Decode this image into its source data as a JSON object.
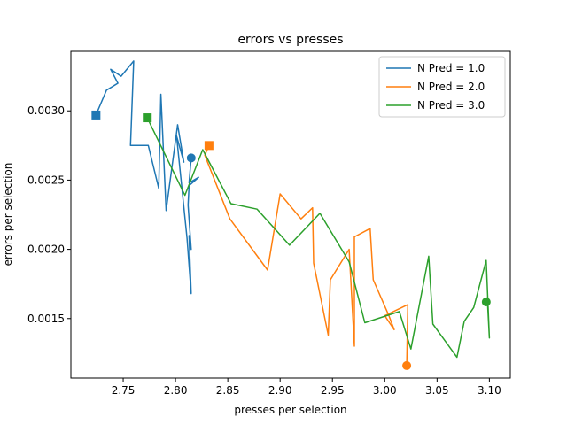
{
  "chart_data": {
    "type": "line",
    "title": "errors vs presses",
    "xlabel": "presses per selection",
    "ylabel": "errors per selection",
    "xlim": [
      2.7,
      3.12
    ],
    "ylim": [
      0.00107,
      0.00343
    ],
    "xticks": [
      2.75,
      2.8,
      2.85,
      2.9,
      2.95,
      3.0,
      3.05,
      3.1
    ],
    "xtick_labels": [
      "2.75",
      "2.80",
      "2.85",
      "2.90",
      "2.95",
      "3.00",
      "3.05",
      "3.10"
    ],
    "yticks": [
      0.0015,
      0.002,
      0.0025,
      0.003
    ],
    "ytick_labels": [
      "0.0015",
      "0.0020",
      "0.0025",
      "0.0030"
    ],
    "grid": false,
    "legend": "top-right",
    "start_marker": "square",
    "end_marker": "circle",
    "series": [
      {
        "name": "N Pred = 1.0",
        "color": "#1f77b4",
        "x": [
          2.724,
          2.734,
          2.745,
          2.738,
          2.748,
          2.76,
          2.757,
          2.774,
          2.784,
          2.786,
          2.791,
          2.802,
          2.808,
          2.801,
          2.811,
          2.815,
          2.813,
          2.815,
          2.812,
          2.813,
          2.822,
          2.813,
          2.815
        ],
        "y": [
          0.00297,
          0.00315,
          0.0032,
          0.0033,
          0.00325,
          0.00336,
          0.00275,
          0.00275,
          0.00244,
          0.00312,
          0.00228,
          0.0029,
          0.00263,
          0.00282,
          0.00208,
          0.00168,
          0.0021,
          0.002,
          0.00232,
          0.00246,
          0.00252,
          0.00248,
          0.00266
        ]
      },
      {
        "name": "N Pred = 2.0",
        "color": "#ff7f0e",
        "x": [
          2.832,
          2.828,
          2.852,
          2.888,
          2.9,
          2.92,
          2.931,
          2.932,
          2.946,
          2.948,
          2.966,
          2.971,
          2.971,
          2.986,
          2.989,
          3.004,
          3.009,
          3.0,
          3.022,
          3.021
        ],
        "y": [
          0.00275,
          0.00268,
          0.00222,
          0.00185,
          0.0024,
          0.00222,
          0.0023,
          0.0019,
          0.00138,
          0.00178,
          0.002,
          0.0013,
          0.00209,
          0.00215,
          0.00178,
          0.00152,
          0.00142,
          0.00152,
          0.0016,
          0.00116
        ]
      },
      {
        "name": "N Pred = 3.0",
        "color": "#2ca02c",
        "x": [
          2.773,
          2.809,
          2.826,
          2.853,
          2.878,
          2.909,
          2.938,
          2.966,
          2.981,
          3.014,
          3.025,
          3.042,
          3.046,
          3.069,
          3.076,
          3.085,
          3.097,
          3.1,
          3.098,
          3.097
        ],
        "y": [
          0.00295,
          0.00239,
          0.00272,
          0.00233,
          0.00229,
          0.00203,
          0.00226,
          0.00191,
          0.00147,
          0.00155,
          0.00128,
          0.00195,
          0.00146,
          0.00122,
          0.00148,
          0.00158,
          0.00192,
          0.00136,
          0.00165,
          0.00162
        ]
      }
    ]
  }
}
